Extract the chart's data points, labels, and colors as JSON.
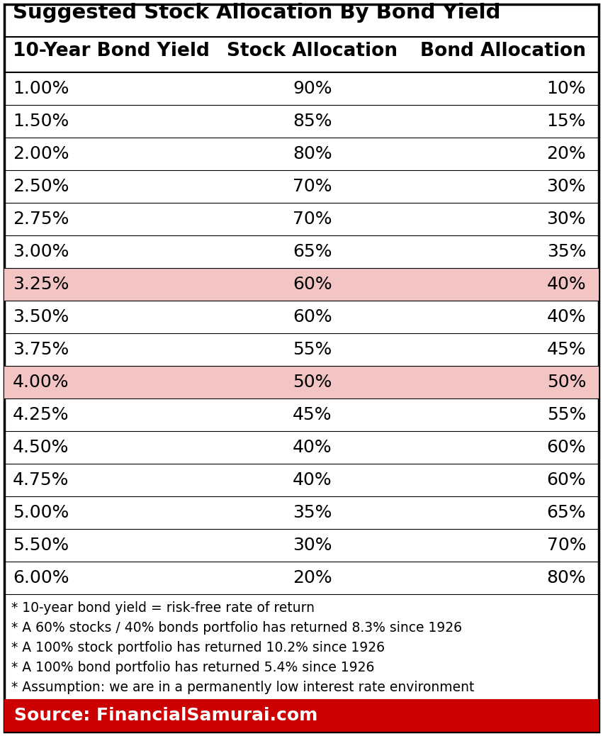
{
  "title": "Suggested Stock Allocation By Bond Yield",
  "header": [
    "10-Year Bond Yield",
    "Stock Allocation",
    "Bond Allocation"
  ],
  "rows": [
    [
      "1.00%",
      "90%",
      "10%"
    ],
    [
      "1.50%",
      "85%",
      "15%"
    ],
    [
      "2.00%",
      "80%",
      "20%"
    ],
    [
      "2.50%",
      "70%",
      "30%"
    ],
    [
      "2.75%",
      "70%",
      "30%"
    ],
    [
      "3.00%",
      "65%",
      "35%"
    ],
    [
      "3.25%",
      "60%",
      "40%"
    ],
    [
      "3.50%",
      "60%",
      "40%"
    ],
    [
      "3.75%",
      "55%",
      "45%"
    ],
    [
      "4.00%",
      "50%",
      "50%"
    ],
    [
      "4.25%",
      "45%",
      "55%"
    ],
    [
      "4.50%",
      "40%",
      "60%"
    ],
    [
      "4.75%",
      "40%",
      "60%"
    ],
    [
      "5.00%",
      "35%",
      "65%"
    ],
    [
      "5.50%",
      "30%",
      "70%"
    ],
    [
      "6.00%",
      "20%",
      "80%"
    ]
  ],
  "highlighted_rows": [
    6,
    9
  ],
  "highlight_color": "#f2c4c4",
  "footnotes": [
    "* 10-year bond yield = risk-free rate of return",
    "* A 60% stocks / 40% bonds portfolio has returned 8.3% since 1926",
    "* A 100% stock portfolio has returned 10.2% since 1926",
    "* A 100% bond portfolio has returned 5.4% since 1926",
    "* Assumption: we are in a permanently low interest rate environment"
  ],
  "source_text": "Source: FinancialSamurai.com",
  "source_bg": "#cc0000",
  "source_fg": "#ffffff",
  "bg_color": "#ffffff",
  "border_color": "#000000",
  "title_fontsize": 21,
  "header_fontsize": 19,
  "data_fontsize": 18,
  "footnote_fontsize": 13.5,
  "source_fontsize": 18
}
